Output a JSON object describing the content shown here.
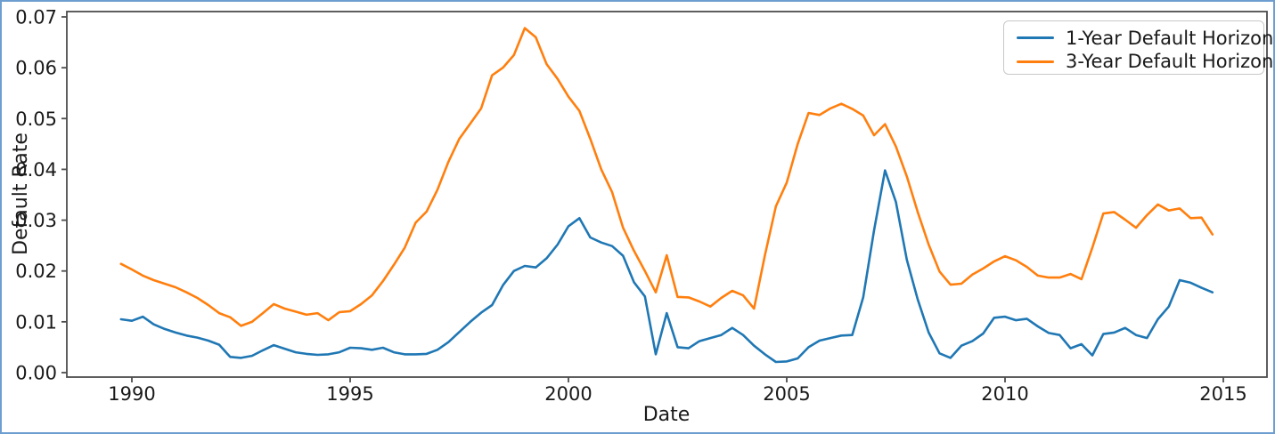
{
  "figure": {
    "border_color": "#6e9ecf",
    "background_color": "#ffffff",
    "spine_color": "#4d4d4d",
    "tick_text_color": "#1a1a1a"
  },
  "chart_data": {
    "type": "line",
    "title": "",
    "xlabel": "Date",
    "ylabel": "Default Rate",
    "grid": false,
    "legend_position": "upper right",
    "x_axis": {
      "ticks": [
        1990,
        1995,
        2000,
        2005,
        2010,
        2015
      ],
      "tick_labels": [
        "1990",
        "1995",
        "2000",
        "2005",
        "2010",
        "2015"
      ],
      "range": [
        1988.5,
        2016.0
      ]
    },
    "y_axis": {
      "ticks": [
        0.0,
        0.01,
        0.02,
        0.03,
        0.04,
        0.05,
        0.06,
        0.07
      ],
      "tick_labels": [
        "0.00",
        "0.01",
        "0.02",
        "0.03",
        "0.04",
        "0.05",
        "0.06",
        "0.07"
      ],
      "range": [
        -0.0009,
        0.0711
      ]
    },
    "x": [
      1989.75,
      1990.0,
      1990.25,
      1990.5,
      1990.75,
      1991.0,
      1991.25,
      1991.5,
      1991.75,
      1992.0,
      1992.25,
      1992.5,
      1992.75,
      1993.0,
      1993.25,
      1993.5,
      1993.75,
      1994.0,
      1994.25,
      1994.5,
      1994.75,
      1995.0,
      1995.25,
      1995.5,
      1995.75,
      1996.0,
      1996.25,
      1996.5,
      1996.75,
      1997.0,
      1997.25,
      1997.5,
      1997.75,
      1998.0,
      1998.25,
      1998.5,
      1998.75,
      1999.0,
      1999.25,
      1999.5,
      1999.75,
      2000.0,
      2000.25,
      2000.5,
      2000.75,
      2001.0,
      2001.25,
      2001.5,
      2001.75,
      2002.0,
      2002.25,
      2002.5,
      2002.75,
      2003.0,
      2003.25,
      2003.5,
      2003.75,
      2004.0,
      2004.25,
      2004.5,
      2004.75,
      2005.0,
      2005.25,
      2005.5,
      2005.75,
      2006.0,
      2006.25,
      2006.5,
      2006.75,
      2007.0,
      2007.25,
      2007.5,
      2007.75,
      2008.0,
      2008.25,
      2008.5,
      2008.75,
      2009.0,
      2009.25,
      2009.5,
      2009.75,
      2010.0,
      2010.25,
      2010.5,
      2010.75,
      2011.0,
      2011.25,
      2011.5,
      2011.75,
      2012.0,
      2012.25,
      2012.5,
      2012.75,
      2013.0,
      2013.25,
      2013.5,
      2013.75,
      2014.0,
      2014.25,
      2014.5,
      2014.75
    ],
    "series": [
      {
        "name": "1-Year Default Horizon",
        "color": "#1f77b4",
        "values": [
          0.0105,
          0.0102,
          0.011,
          0.0095,
          0.0086,
          0.0079,
          0.0073,
          0.0069,
          0.0063,
          0.0055,
          0.0031,
          0.0029,
          0.0033,
          0.0044,
          0.0054,
          0.0047,
          0.004,
          0.0037,
          0.0035,
          0.0036,
          0.004,
          0.0049,
          0.0048,
          0.0045,
          0.0049,
          0.004,
          0.0036,
          0.0036,
          0.0037,
          0.0045,
          0.006,
          0.008,
          0.01,
          0.0118,
          0.0133,
          0.0172,
          0.02,
          0.021,
          0.0207,
          0.0225,
          0.0252,
          0.0288,
          0.0304,
          0.0266,
          0.0256,
          0.0249,
          0.023,
          0.0178,
          0.015,
          0.0036,
          0.0117,
          0.005,
          0.0048,
          0.0062,
          0.0068,
          0.0074,
          0.0088,
          0.0074,
          0.0053,
          0.0036,
          0.0021,
          0.0022,
          0.0028,
          0.005,
          0.0063,
          0.0068,
          0.0073,
          0.0074,
          0.0148,
          0.028,
          0.0398,
          0.0336,
          0.0222,
          0.0144,
          0.0079,
          0.0038,
          0.0029,
          0.0053,
          0.0062,
          0.0077,
          0.0108,
          0.011,
          0.0103,
          0.0106,
          0.0091,
          0.0078,
          0.0074,
          0.0048,
          0.0056,
          0.0034,
          0.0076,
          0.0079,
          0.0088,
          0.0074,
          0.0068,
          0.0105,
          0.013,
          0.0182,
          0.0177,
          0.0167,
          0.0158
        ]
      },
      {
        "name": "3-Year Default Horizon",
        "color": "#ff7f0e",
        "values": [
          0.0214,
          0.0203,
          0.0191,
          0.0182,
          0.0175,
          0.0168,
          0.0158,
          0.0147,
          0.0133,
          0.0117,
          0.0109,
          0.0092,
          0.01,
          0.0117,
          0.0135,
          0.0126,
          0.012,
          0.0114,
          0.0117,
          0.0103,
          0.0119,
          0.0121,
          0.0135,
          0.0152,
          0.018,
          0.0212,
          0.0246,
          0.0295,
          0.0317,
          0.036,
          0.0415,
          0.046,
          0.049,
          0.052,
          0.0585,
          0.06,
          0.0625,
          0.0678,
          0.066,
          0.0607,
          0.0578,
          0.0543,
          0.0515,
          0.046,
          0.04,
          0.0355,
          0.0285,
          0.024,
          0.02,
          0.0158,
          0.0231,
          0.0149,
          0.0148,
          0.014,
          0.013,
          0.0147,
          0.0161,
          0.0152,
          0.0126,
          0.0231,
          0.0327,
          0.0374,
          0.045,
          0.0511,
          0.0507,
          0.052,
          0.0529,
          0.0519,
          0.0506,
          0.0467,
          0.0489,
          0.0445,
          0.0386,
          0.0316,
          0.0252,
          0.0199,
          0.0173,
          0.0175,
          0.0193,
          0.0205,
          0.0219,
          0.0229,
          0.0221,
          0.0208,
          0.0191,
          0.0187,
          0.0187,
          0.0194,
          0.0184,
          0.0246,
          0.0313,
          0.0316,
          0.0301,
          0.0285,
          0.031,
          0.0331,
          0.0319,
          0.0323,
          0.0304,
          0.0305,
          0.0272
        ]
      }
    ]
  }
}
